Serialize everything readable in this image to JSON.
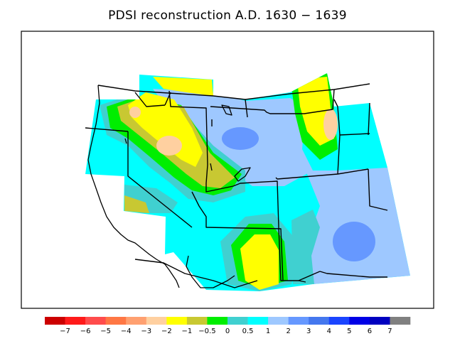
{
  "title": "PDSI reconstruction A.D. 1630 − 1639",
  "colorbar": {
    "colors": [
      "#cc0000",
      "#ff1a1a",
      "#ff4c4c",
      "#ff7744",
      "#ffa070",
      "#ffd0a0",
      "#ffff00",
      "#c8c832",
      "#00ee00",
      "#40d0d0",
      "#00ffff",
      "#9ec8ff",
      "#6698ff",
      "#4477ee",
      "#1a44ff",
      "#0000e6",
      "#0000c0",
      "#808080"
    ],
    "labels": [
      "−7",
      "−6",
      "−5",
      "−4",
      "−3",
      "−2",
      "−1",
      "−0.5",
      "0",
      "0.5",
      "1",
      "2",
      "3",
      "4",
      "5",
      "6",
      "7"
    ]
  },
  "palette": {
    "cyan": "#00ffff",
    "light_blue": "#9ec8ff",
    "medium_blue": "#6698ff",
    "teal": "#40d0d0",
    "green": "#00ee00",
    "olive": "#c8c832",
    "yellow": "#ffff00",
    "peach": "#ffd0a0"
  }
}
